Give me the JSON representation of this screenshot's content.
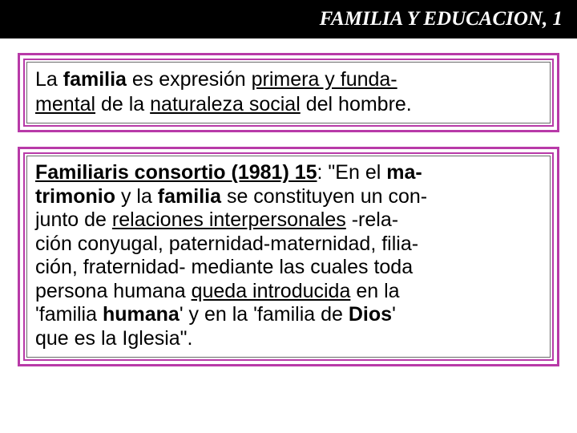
{
  "colors": {
    "title_bar_bg": "#000000",
    "title_text": "#ffffff",
    "box_border_outer": "#b83aa8",
    "box_border_inner": "#6a6a6a",
    "body_text": "#000000",
    "page_bg": "#ffffff"
  },
  "typography": {
    "title_font": "Times New Roman",
    "title_style": "italic bold",
    "title_size_pt": 25,
    "body_font": "Arial",
    "body_size_pt": 25
  },
  "title": "FAMILIA Y EDUCACION, 1",
  "box1": {
    "t1": "La ",
    "t2": "familia",
    "t3": " es expresión ",
    "t4": "primera y funda-",
    "t5": "mental",
    "t6": " de la ",
    "t7": "naturaleza social",
    "t8": " del hombre."
  },
  "box2": {
    "cite": "Familiaris consortio (1981) 15",
    "c1": ": \"En el ",
    "c2": "ma-",
    "c3": "trimonio",
    "c4": " y la ",
    "c5": "familia",
    "c6": " se constituyen un con-",
    "c7": "junto de ",
    "c8": "relaciones interpersonales",
    "c9": " -rela-",
    "c10": "ción conyugal, paternidad-maternidad, filia-",
    "c11": "ción, fraternidad- mediante las cuales toda ",
    "c12": "persona humana ",
    "c13": "queda introducida",
    "c14": " en la ",
    "c15": "'familia ",
    "c16": "humana",
    "c17": "' y en la 'familia de ",
    "c18": "Dios",
    "c19": "' ",
    "c20": "que es la Iglesia\"."
  }
}
